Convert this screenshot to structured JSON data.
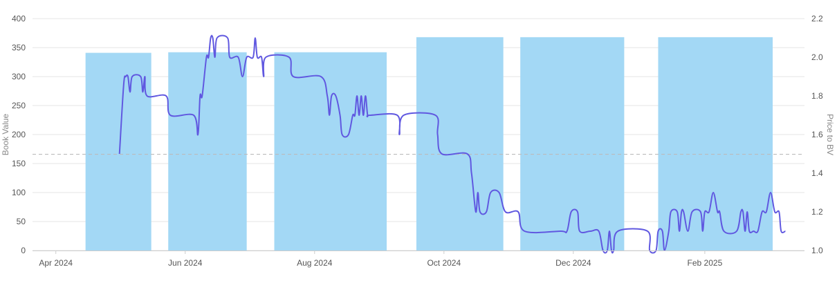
{
  "chart_data": {
    "type": "bar",
    "title": "",
    "xlabel": "",
    "ylabel": "Book Value",
    "y2label": "Price to BV",
    "x_ticks": [
      "Apr 2024",
      "Jun 2024",
      "Aug 2024",
      "Oct 2024",
      "Dec 2024",
      "Feb 2025"
    ],
    "y_ticks": [
      "0",
      "50",
      "100",
      "150",
      "200",
      "250",
      "300",
      "350",
      "400"
    ],
    "y2_ticks": [
      "1.0",
      "1.2",
      "1.4",
      "1.6",
      "1.8",
      "2.0",
      "2.2"
    ],
    "ylim": [
      0,
      400
    ],
    "y2lim": [
      1.0,
      2.2
    ],
    "xlim": [
      "2024-03-21",
      "2025-03-20"
    ],
    "grid": true,
    "legend": "none",
    "reference_line": {
      "axis": "y",
      "value": 166,
      "style": "dashed"
    },
    "series": [
      {
        "type": "bar",
        "axis": "left",
        "color": "#a3d8f5",
        "bars": [
          {
            "start": "2024-04-15",
            "end": "2024-05-16",
            "value": 341
          },
          {
            "start": "2024-05-24",
            "end": "2024-06-30",
            "value": 342
          },
          {
            "start": "2024-07-13",
            "end": "2024-09-04",
            "value": 342
          },
          {
            "start": "2024-09-18",
            "end": "2024-10-29",
            "value": 368
          },
          {
            "start": "2024-11-06",
            "end": "2024-12-25",
            "value": 368
          },
          {
            "start": "2025-01-10",
            "end": "2025-03-05",
            "value": 368
          }
        ]
      },
      {
        "type": "line",
        "axis": "right",
        "color": "#6058e0",
        "points": [
          [
            "2024-05-01",
            1.5
          ],
          [
            "2024-05-03",
            1.86
          ],
          [
            "2024-05-04",
            1.9
          ],
          [
            "2024-05-05",
            1.9
          ],
          [
            "2024-05-06",
            1.82
          ],
          [
            "2024-05-07",
            1.9
          ],
          [
            "2024-05-11",
            1.9
          ],
          [
            "2024-05-12",
            1.82
          ],
          [
            "2024-05-13",
            1.9
          ],
          [
            "2024-05-14",
            1.8
          ],
          [
            "2024-05-23",
            1.8
          ],
          [
            "2024-05-25",
            1.7
          ],
          [
            "2024-06-05",
            1.7
          ],
          [
            "2024-06-07",
            1.6
          ],
          [
            "2024-06-08",
            1.8
          ],
          [
            "2024-06-09",
            1.8
          ],
          [
            "2024-06-11",
            2.0
          ],
          [
            "2024-06-12",
            2.0
          ],
          [
            "2024-06-13",
            2.1
          ],
          [
            "2024-06-14",
            2.1
          ],
          [
            "2024-06-15",
            2.0
          ],
          [
            "2024-06-16",
            2.1
          ],
          [
            "2024-06-21",
            2.1
          ],
          [
            "2024-06-22",
            2.0
          ],
          [
            "2024-06-26",
            2.0
          ],
          [
            "2024-06-28",
            1.9
          ],
          [
            "2024-06-30",
            2.0
          ],
          [
            "2024-07-03",
            2.0
          ],
          [
            "2024-07-04",
            2.1
          ],
          [
            "2024-07-05",
            2.0
          ],
          [
            "2024-07-07",
            2.0
          ],
          [
            "2024-07-08",
            1.9
          ],
          [
            "2024-07-09",
            2.0
          ],
          [
            "2024-07-20",
            2.0
          ],
          [
            "2024-07-22",
            1.9
          ],
          [
            "2024-08-04",
            1.9
          ],
          [
            "2024-08-07",
            1.8
          ],
          [
            "2024-08-08",
            1.7
          ],
          [
            "2024-08-09",
            1.8
          ],
          [
            "2024-08-11",
            1.8
          ],
          [
            "2024-08-13",
            1.7
          ],
          [
            "2024-08-14",
            1.6
          ],
          [
            "2024-08-17",
            1.6
          ],
          [
            "2024-08-19",
            1.7
          ],
          [
            "2024-08-20",
            1.7
          ],
          [
            "2024-08-21",
            1.8
          ],
          [
            "2024-08-22",
            1.7
          ],
          [
            "2024-08-23",
            1.8
          ],
          [
            "2024-08-24",
            1.7
          ],
          [
            "2024-08-25",
            1.8
          ],
          [
            "2024-08-26",
            1.7
          ],
          [
            "2024-08-27",
            1.7
          ],
          [
            "2024-09-09",
            1.7
          ],
          [
            "2024-09-10",
            1.6
          ],
          [
            "2024-09-12",
            1.7
          ],
          [
            "2024-09-27",
            1.7
          ],
          [
            "2024-09-28",
            1.6
          ],
          [
            "2024-09-30",
            1.5
          ],
          [
            "2024-10-12",
            1.5
          ],
          [
            "2024-10-14",
            1.4
          ],
          [
            "2024-10-16",
            1.2
          ],
          [
            "2024-10-17",
            1.3
          ],
          [
            "2024-10-18",
            1.2
          ],
          [
            "2024-10-21",
            1.2
          ],
          [
            "2024-10-23",
            1.3
          ],
          [
            "2024-10-27",
            1.3
          ],
          [
            "2024-10-30",
            1.2
          ],
          [
            "2024-11-05",
            1.2
          ],
          [
            "2024-11-08",
            1.1
          ],
          [
            "2024-11-25",
            1.1
          ],
          [
            "2024-11-28",
            1.1
          ],
          [
            "2024-11-30",
            1.2
          ],
          [
            "2024-12-03",
            1.2
          ],
          [
            "2024-12-04",
            1.1
          ],
          [
            "2024-12-09",
            1.1
          ],
          [
            "2024-12-13",
            1.1
          ],
          [
            "2024-12-15",
            1.0
          ],
          [
            "2024-12-17",
            1.0
          ],
          [
            "2024-12-18",
            1.1
          ],
          [
            "2024-12-19",
            1.0
          ],
          [
            "2024-12-20",
            1.0
          ],
          [
            "2024-12-22",
            1.1
          ],
          [
            "2025-01-05",
            1.1
          ],
          [
            "2025-01-06",
            1.0
          ],
          [
            "2025-01-09",
            1.0
          ],
          [
            "2025-01-10",
            1.1
          ],
          [
            "2025-01-12",
            1.1
          ],
          [
            "2025-01-13",
            1.0
          ],
          [
            "2025-01-15",
            1.1
          ],
          [
            "2025-01-16",
            1.2
          ],
          [
            "2025-01-19",
            1.2
          ],
          [
            "2025-01-20",
            1.1
          ],
          [
            "2025-01-21",
            1.2
          ],
          [
            "2025-01-22",
            1.2
          ],
          [
            "2025-01-24",
            1.1
          ],
          [
            "2025-01-26",
            1.2
          ],
          [
            "2025-01-30",
            1.2
          ],
          [
            "2025-01-31",
            1.1
          ],
          [
            "2025-02-01",
            1.2
          ],
          [
            "2025-02-03",
            1.2
          ],
          [
            "2025-02-05",
            1.3
          ],
          [
            "2025-02-07",
            1.2
          ],
          [
            "2025-02-08",
            1.2
          ],
          [
            "2025-02-10",
            1.1
          ],
          [
            "2025-02-16",
            1.1
          ],
          [
            "2025-02-18",
            1.2
          ],
          [
            "2025-02-19",
            1.2
          ],
          [
            "2025-02-20",
            1.1
          ],
          [
            "2025-02-21",
            1.2
          ],
          [
            "2025-02-22",
            1.1
          ],
          [
            "2025-02-24",
            1.1
          ],
          [
            "2025-02-26",
            1.1
          ],
          [
            "2025-02-28",
            1.2
          ],
          [
            "2025-03-02",
            1.2
          ],
          [
            "2025-03-04",
            1.3
          ],
          [
            "2025-03-06",
            1.2
          ],
          [
            "2025-03-08",
            1.2
          ],
          [
            "2025-03-09",
            1.1
          ],
          [
            "2025-03-11",
            1.1
          ]
        ]
      }
    ]
  }
}
